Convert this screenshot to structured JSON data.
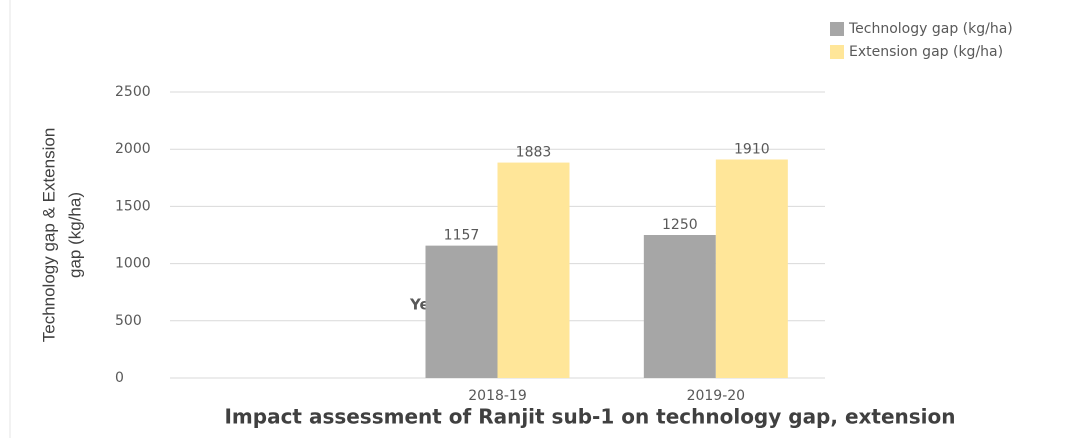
{
  "chart_data": {
    "type": "bar",
    "title": "Impact assessment of Ranjit sub-1 on technology gap, extension",
    "ylabel": [
      "Technology gap  & Extension",
      "gap (kg/ha)"
    ],
    "categories": [
      null,
      "2018-19",
      "2019-20"
    ],
    "series": [
      {
        "name": "Technology gap (kg/ha)",
        "color": "#a6a6a6",
        "values": [
          null,
          1157,
          1250
        ]
      },
      {
        "name": "Extension gap (kg/ha)",
        "color": "#ffe699",
        "values": [
          null,
          1883,
          1910
        ]
      }
    ],
    "annotations": [
      "Ye"
    ],
    "ylim": [
      0,
      2500
    ],
    "yticks": [
      0,
      500,
      1000,
      1500,
      2000,
      2500
    ],
    "grid": true,
    "legend": "top-right"
  }
}
